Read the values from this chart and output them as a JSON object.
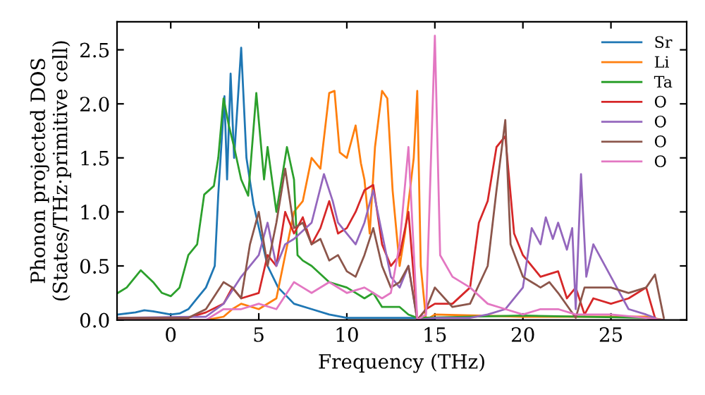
{
  "chart_data": {
    "type": "line",
    "xlabel": "Frequency (THz)",
    "ylabel": "Phonon projected DOS\n(States/THz·primitive cell)",
    "xlim": [
      -3.05,
      29.3
    ],
    "ylim": [
      0,
      2.76
    ],
    "xticks": [
      0,
      5,
      10,
      15,
      20,
      25
    ],
    "yticks": [
      {
        "value": 0,
        "label": "0.0"
      },
      {
        "value": 0.5,
        "label": "0.5"
      },
      {
        "value": 1,
        "label": "1.0"
      },
      {
        "value": 1.5,
        "label": "1.5"
      },
      {
        "value": 2,
        "label": "2.0"
      },
      {
        "value": 2.5,
        "label": "2.5"
      }
    ],
    "legend": "top right",
    "grid": false,
    "line_style": "solid",
    "marker": "none",
    "series": [
      {
        "name": "Sr",
        "color": "#1f77b4",
        "x": [
          -3,
          -2,
          -1.5,
          -1,
          0,
          0.5,
          1,
          1.5,
          2,
          2.5,
          2.7,
          3.05,
          3.2,
          3.4,
          3.6,
          4.0,
          4.3,
          4.7,
          5.5,
          6.1,
          7,
          8,
          9,
          10,
          14,
          15
        ],
        "values": [
          0.05,
          0.07,
          0.09,
          0.08,
          0.05,
          0.06,
          0.1,
          0.2,
          0.3,
          0.5,
          1.16,
          2.07,
          1.3,
          2.28,
          1.5,
          2.52,
          1.5,
          1.07,
          0.5,
          0.3,
          0.15,
          0.1,
          0.05,
          0.02,
          0.02,
          0.0
        ]
      },
      {
        "name": "Li",
        "color": "#ff7f0e",
        "x": [
          -3,
          2,
          3,
          3.5,
          4,
          5,
          6,
          6.5,
          7,
          7.5,
          8,
          8.5,
          9,
          9.3,
          9.6,
          10,
          10.5,
          10.8,
          11,
          11.3,
          11.6,
          12,
          12.3,
          12.6,
          13,
          13.3,
          13.8,
          14,
          14.2,
          14.5,
          15,
          20,
          27,
          28
        ],
        "values": [
          0.0,
          0.0,
          0.03,
          0.1,
          0.15,
          0.1,
          0.2,
          0.6,
          1.0,
          1.1,
          1.5,
          1.4,
          2.1,
          2.12,
          1.55,
          1.5,
          1.8,
          1.45,
          1.3,
          0.8,
          1.6,
          2.12,
          2.05,
          1.2,
          0.5,
          0.8,
          1.5,
          2.12,
          0.5,
          0.0,
          0.05,
          0.03,
          0.03,
          0.0
        ]
      },
      {
        "name": "Ta",
        "color": "#2ca02c",
        "x": [
          -3,
          -2.5,
          -1.7,
          -1,
          -0.5,
          0,
          0.5,
          1,
          1.5,
          1.9,
          2.45,
          2.7,
          3.0,
          3.3,
          3.6,
          4.0,
          4.4,
          4.86,
          5.3,
          5.5,
          6.0,
          6.6,
          7,
          7.2,
          7.5,
          8,
          9,
          10,
          11,
          11.5,
          12,
          13,
          13.5,
          14,
          20,
          27,
          28
        ],
        "values": [
          0.25,
          0.3,
          0.46,
          0.35,
          0.25,
          0.22,
          0.3,
          0.6,
          0.7,
          1.16,
          1.24,
          1.5,
          2.05,
          1.8,
          1.6,
          1.3,
          1.15,
          2.1,
          1.3,
          1.6,
          1.0,
          1.6,
          1.3,
          0.6,
          0.55,
          0.5,
          0.35,
          0.3,
          0.2,
          0.25,
          0.12,
          0.12,
          0.05,
          0.02,
          0.04,
          0.02,
          0.0
        ]
      },
      {
        "name": "O",
        "color": "#d62728",
        "x": [
          -3,
          1,
          2,
          3,
          3.5,
          4,
          5,
          5.5,
          6,
          6.5,
          7,
          7.5,
          8,
          8.5,
          9,
          9.5,
          10,
          10.5,
          11,
          11.5,
          12,
          12.5,
          13,
          13.5,
          14,
          14.5,
          15,
          16,
          17,
          17.5,
          18,
          18.5,
          19,
          19.5,
          20,
          21,
          22,
          22.5,
          23,
          23.5,
          24,
          25,
          26,
          27,
          27.5
        ],
        "values": [
          0.02,
          0.02,
          0.07,
          0.15,
          0.3,
          0.2,
          0.25,
          0.6,
          0.5,
          1.0,
          0.8,
          0.95,
          0.7,
          0.85,
          1.1,
          0.8,
          0.85,
          1.0,
          1.2,
          1.25,
          0.7,
          0.5,
          0.6,
          1.0,
          0.0,
          0.1,
          0.15,
          0.15,
          0.3,
          0.9,
          1.1,
          1.6,
          1.7,
          0.8,
          0.6,
          0.4,
          0.45,
          0.2,
          0.3,
          0.05,
          0.2,
          0.15,
          0.2,
          0.3,
          0.02
        ]
      },
      {
        "name": "O",
        "color": "#9467bd",
        "x": [
          -3,
          2,
          3,
          4,
          5,
          5.5,
          6,
          6.5,
          7,
          8,
          8.7,
          9.2,
          9.5,
          10,
          10.5,
          11,
          11.5,
          12,
          12.5,
          13,
          13.5,
          14,
          15,
          17,
          18,
          19,
          20,
          20.5,
          21,
          21.3,
          21.7,
          22,
          22.5,
          22.8,
          23,
          23.3,
          23.6,
          24,
          24.5,
          25,
          25.5,
          26,
          27,
          27.5
        ],
        "values": [
          0.02,
          0.03,
          0.15,
          0.4,
          0.6,
          0.9,
          0.5,
          0.7,
          0.75,
          0.9,
          1.35,
          1.1,
          0.9,
          0.8,
          0.7,
          0.9,
          1.2,
          0.8,
          0.4,
          0.3,
          0.5,
          0.0,
          0.02,
          0.02,
          0.05,
          0.1,
          0.3,
          0.85,
          0.7,
          0.95,
          0.75,
          0.9,
          0.65,
          0.85,
          0.1,
          1.35,
          0.4,
          0.7,
          0.55,
          0.4,
          0.25,
          0.1,
          0.05,
          0.02
        ]
      },
      {
        "name": "O",
        "color": "#8c564b",
        "x": [
          -3,
          1,
          2,
          3,
          3.5,
          4,
          4.5,
          5,
          5.5,
          6,
          6.5,
          7,
          7.5,
          8,
          8.5,
          9,
          9.5,
          10,
          10.5,
          11,
          11.5,
          12,
          12.5,
          13,
          13.5,
          14,
          14.5,
          15,
          16,
          17,
          18,
          18.5,
          19,
          19.3,
          20,
          20.5,
          21,
          21.5,
          22,
          23,
          23.5,
          24,
          25,
          26,
          27,
          27.5,
          28
        ],
        "values": [
          0.02,
          0.02,
          0.1,
          0.35,
          0.3,
          0.2,
          0.7,
          1.0,
          0.5,
          0.9,
          1.4,
          0.85,
          0.9,
          0.7,
          0.75,
          0.55,
          0.6,
          0.45,
          0.4,
          0.6,
          0.85,
          0.5,
          0.3,
          0.35,
          0.5,
          0.0,
          0.1,
          0.3,
          0.12,
          0.15,
          0.5,
          1.2,
          1.85,
          0.7,
          0.4,
          0.35,
          0.3,
          0.35,
          0.25,
          0.02,
          0.3,
          0.3,
          0.3,
          0.25,
          0.3,
          0.42,
          0.02
        ]
      },
      {
        "name": "O",
        "color": "#e377c2",
        "x": [
          -3,
          2,
          3,
          4,
          5,
          6,
          7,
          7.5,
          8,
          9,
          10,
          11,
          11.5,
          12,
          12.5,
          13,
          13.5,
          14,
          14.5,
          15,
          15.3,
          16,
          17,
          18,
          19,
          20,
          21,
          22,
          23,
          25,
          27,
          28
        ],
        "values": [
          0.0,
          0.0,
          0.1,
          0.1,
          0.15,
          0.1,
          0.35,
          0.3,
          0.25,
          0.35,
          0.25,
          0.3,
          0.25,
          0.2,
          0.25,
          0.7,
          1.6,
          0.0,
          0.05,
          2.63,
          0.6,
          0.4,
          0.3,
          0.15,
          0.1,
          0.05,
          0.1,
          0.1,
          0.05,
          0.05,
          0.02,
          0.0
        ]
      }
    ]
  }
}
